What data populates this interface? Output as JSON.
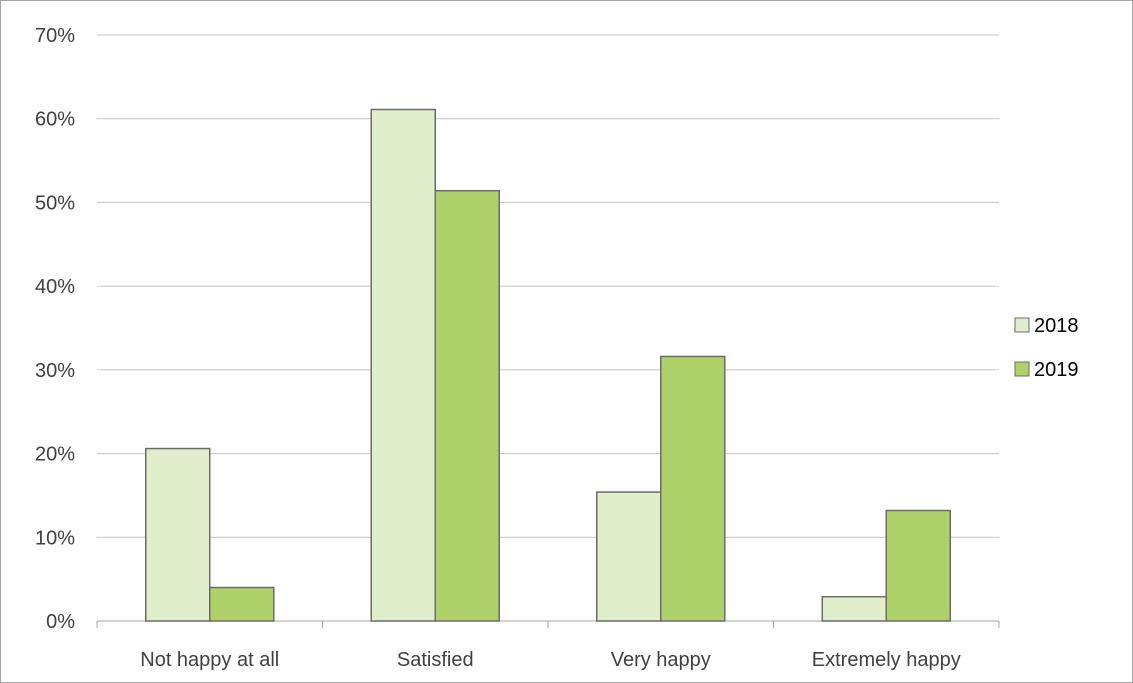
{
  "chart_data": {
    "type": "bar",
    "categories": [
      "Not happy at all",
      "Satisfied",
      "Very happy",
      "Extremely happy"
    ],
    "series": [
      {
        "name": "2018",
        "values": [
          20.6,
          61.1,
          15.4,
          2.9
        ],
        "color": "#e0eecb",
        "stroke": "#6b6b6b"
      },
      {
        "name": "2019",
        "values": [
          4.0,
          51.4,
          31.6,
          13.2
        ],
        "color": "#afd16a",
        "stroke": "#6b6b6b"
      }
    ],
    "ylim": [
      0,
      70
    ],
    "yticks": [
      0,
      10,
      20,
      30,
      40,
      50,
      60,
      70
    ],
    "ytick_labels": [
      "0%",
      "10%",
      "20%",
      "30%",
      "40%",
      "50%",
      "60%",
      "70%"
    ],
    "grid": true,
    "legend_position": "right",
    "title": "",
    "xlabel": "",
    "ylabel": ""
  }
}
